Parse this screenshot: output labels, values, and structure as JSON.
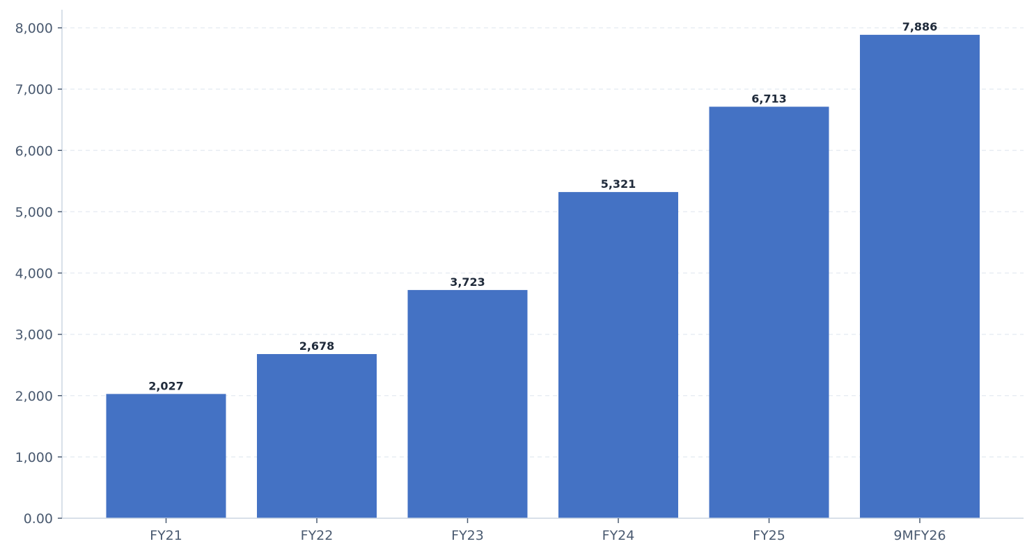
{
  "chart_data": {
    "type": "bar",
    "title": "",
    "xlabel": "",
    "ylabel": "",
    "categories": [
      "FY21",
      "FY22",
      "FY23",
      "FY24",
      "FY25",
      "9MFY26"
    ],
    "values": [
      2027,
      2678,
      3723,
      5321,
      6713,
      7886
    ],
    "value_labels": [
      "2,027",
      "2,678",
      "3,723",
      "5,321",
      "6,713",
      "7,886"
    ],
    "ylim": [
      0,
      8000
    ],
    "yticks": [
      0,
      1000,
      2000,
      3000,
      4000,
      5000,
      6000,
      7000,
      8000
    ],
    "ytick_labels": [
      "0.00",
      "1,000",
      "2,000",
      "3,000",
      "4,000",
      "5,000",
      "6,000",
      "7,000",
      "8,000"
    ],
    "grid": {
      "y": true,
      "x": false,
      "style": "dashed"
    },
    "legend": null,
    "colors": {
      "bar": "#4472c4",
      "axis": "#ccd6e2",
      "grid": "#e8edf3",
      "tick_text": "#4a5a70",
      "value_text": "#1f2a3a"
    }
  }
}
